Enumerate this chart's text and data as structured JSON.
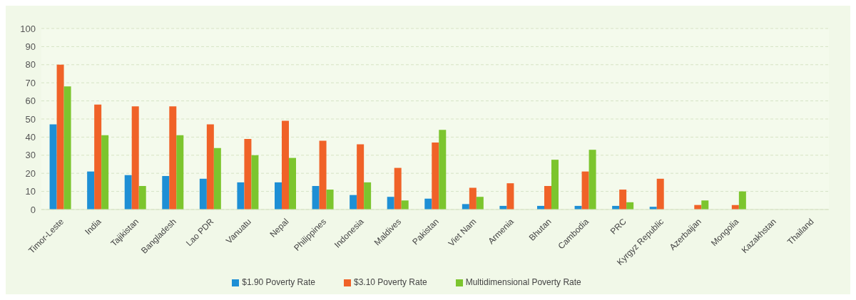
{
  "chart_data": {
    "type": "bar",
    "categories": [
      "Timor-Leste",
      "India",
      "Tajikistan",
      "Bangladesh",
      "Lao PDR",
      "Vanuatu",
      "Nepal",
      "Philippines",
      "Indonesia",
      "Maldives",
      "Pakistan",
      "Viet Nam",
      "Armenia",
      "Bhutan",
      "Cambodia",
      "PRC",
      "Kyrgyz Republic",
      "Azerbaijan",
      "Mongolia",
      "Kazakhstan",
      "Thailand"
    ],
    "series": [
      {
        "name": "$1.90 Poverty Rate",
        "color": "#1e8fd5",
        "values": [
          47,
          21,
          19,
          18.5,
          17,
          15,
          15,
          13,
          8,
          7,
          6,
          3,
          2,
          2,
          2,
          2,
          1.5,
          0,
          0,
          0,
          0
        ]
      },
      {
        "name": "$3.10 Poverty Rate",
        "color": "#f06228",
        "values": [
          80,
          58,
          57,
          57,
          47,
          39,
          49,
          38,
          36,
          23,
          37,
          12,
          14.5,
          13,
          21,
          11,
          17,
          2.5,
          2.5,
          0,
          0
        ]
      },
      {
        "name": "Multidimensional Poverty Rate",
        "color": "#7cc52e",
        "values": [
          68,
          41,
          13,
          41,
          34,
          30,
          28.5,
          11,
          15,
          5,
          44,
          7,
          null,
          27.5,
          33,
          4,
          null,
          5,
          10,
          null,
          null
        ]
      }
    ],
    "ylim": [
      0,
      100
    ],
    "yticks": [
      0,
      10,
      20,
      30,
      40,
      50,
      60,
      70,
      80,
      90,
      100
    ],
    "grid": "y",
    "legend": "bottom"
  }
}
